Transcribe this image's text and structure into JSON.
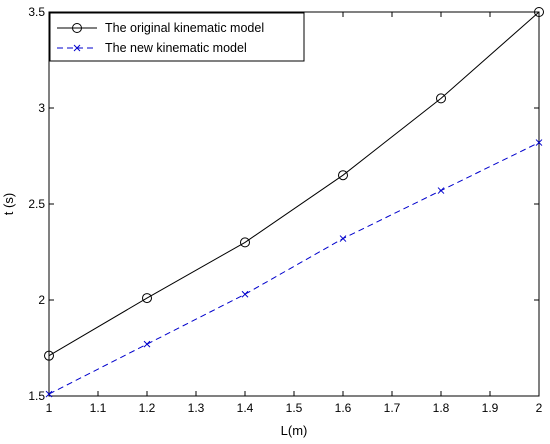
{
  "chart_data": {
    "type": "line",
    "title": "",
    "xlabel": "L(m)",
    "ylabel": "t (s)",
    "xlim": [
      1,
      2
    ],
    "ylim": [
      1.5,
      3.5
    ],
    "xticks": [
      "1",
      "1.1",
      "1.2",
      "1.3",
      "1.4",
      "1.5",
      "1.6",
      "1.7",
      "1.8",
      "1.9",
      "2"
    ],
    "yticks": [
      "1.5",
      "2",
      "2.5",
      "3",
      "3.5"
    ],
    "grid": false,
    "legend_position": "top-left",
    "x": [
      1.0,
      1.2,
      1.4,
      1.6,
      1.8,
      2.0
    ],
    "series": [
      {
        "name": "The original kinematic model",
        "values": [
          1.71,
          2.01,
          2.3,
          2.65,
          3.05,
          3.5
        ],
        "color": "#000000",
        "line_style": "solid",
        "marker": "circle"
      },
      {
        "name": "The new kinematic model",
        "values": [
          1.51,
          1.77,
          2.03,
          2.32,
          2.57,
          2.82
        ],
        "color": "#0000cc",
        "line_style": "dashed",
        "marker": "x"
      }
    ]
  }
}
